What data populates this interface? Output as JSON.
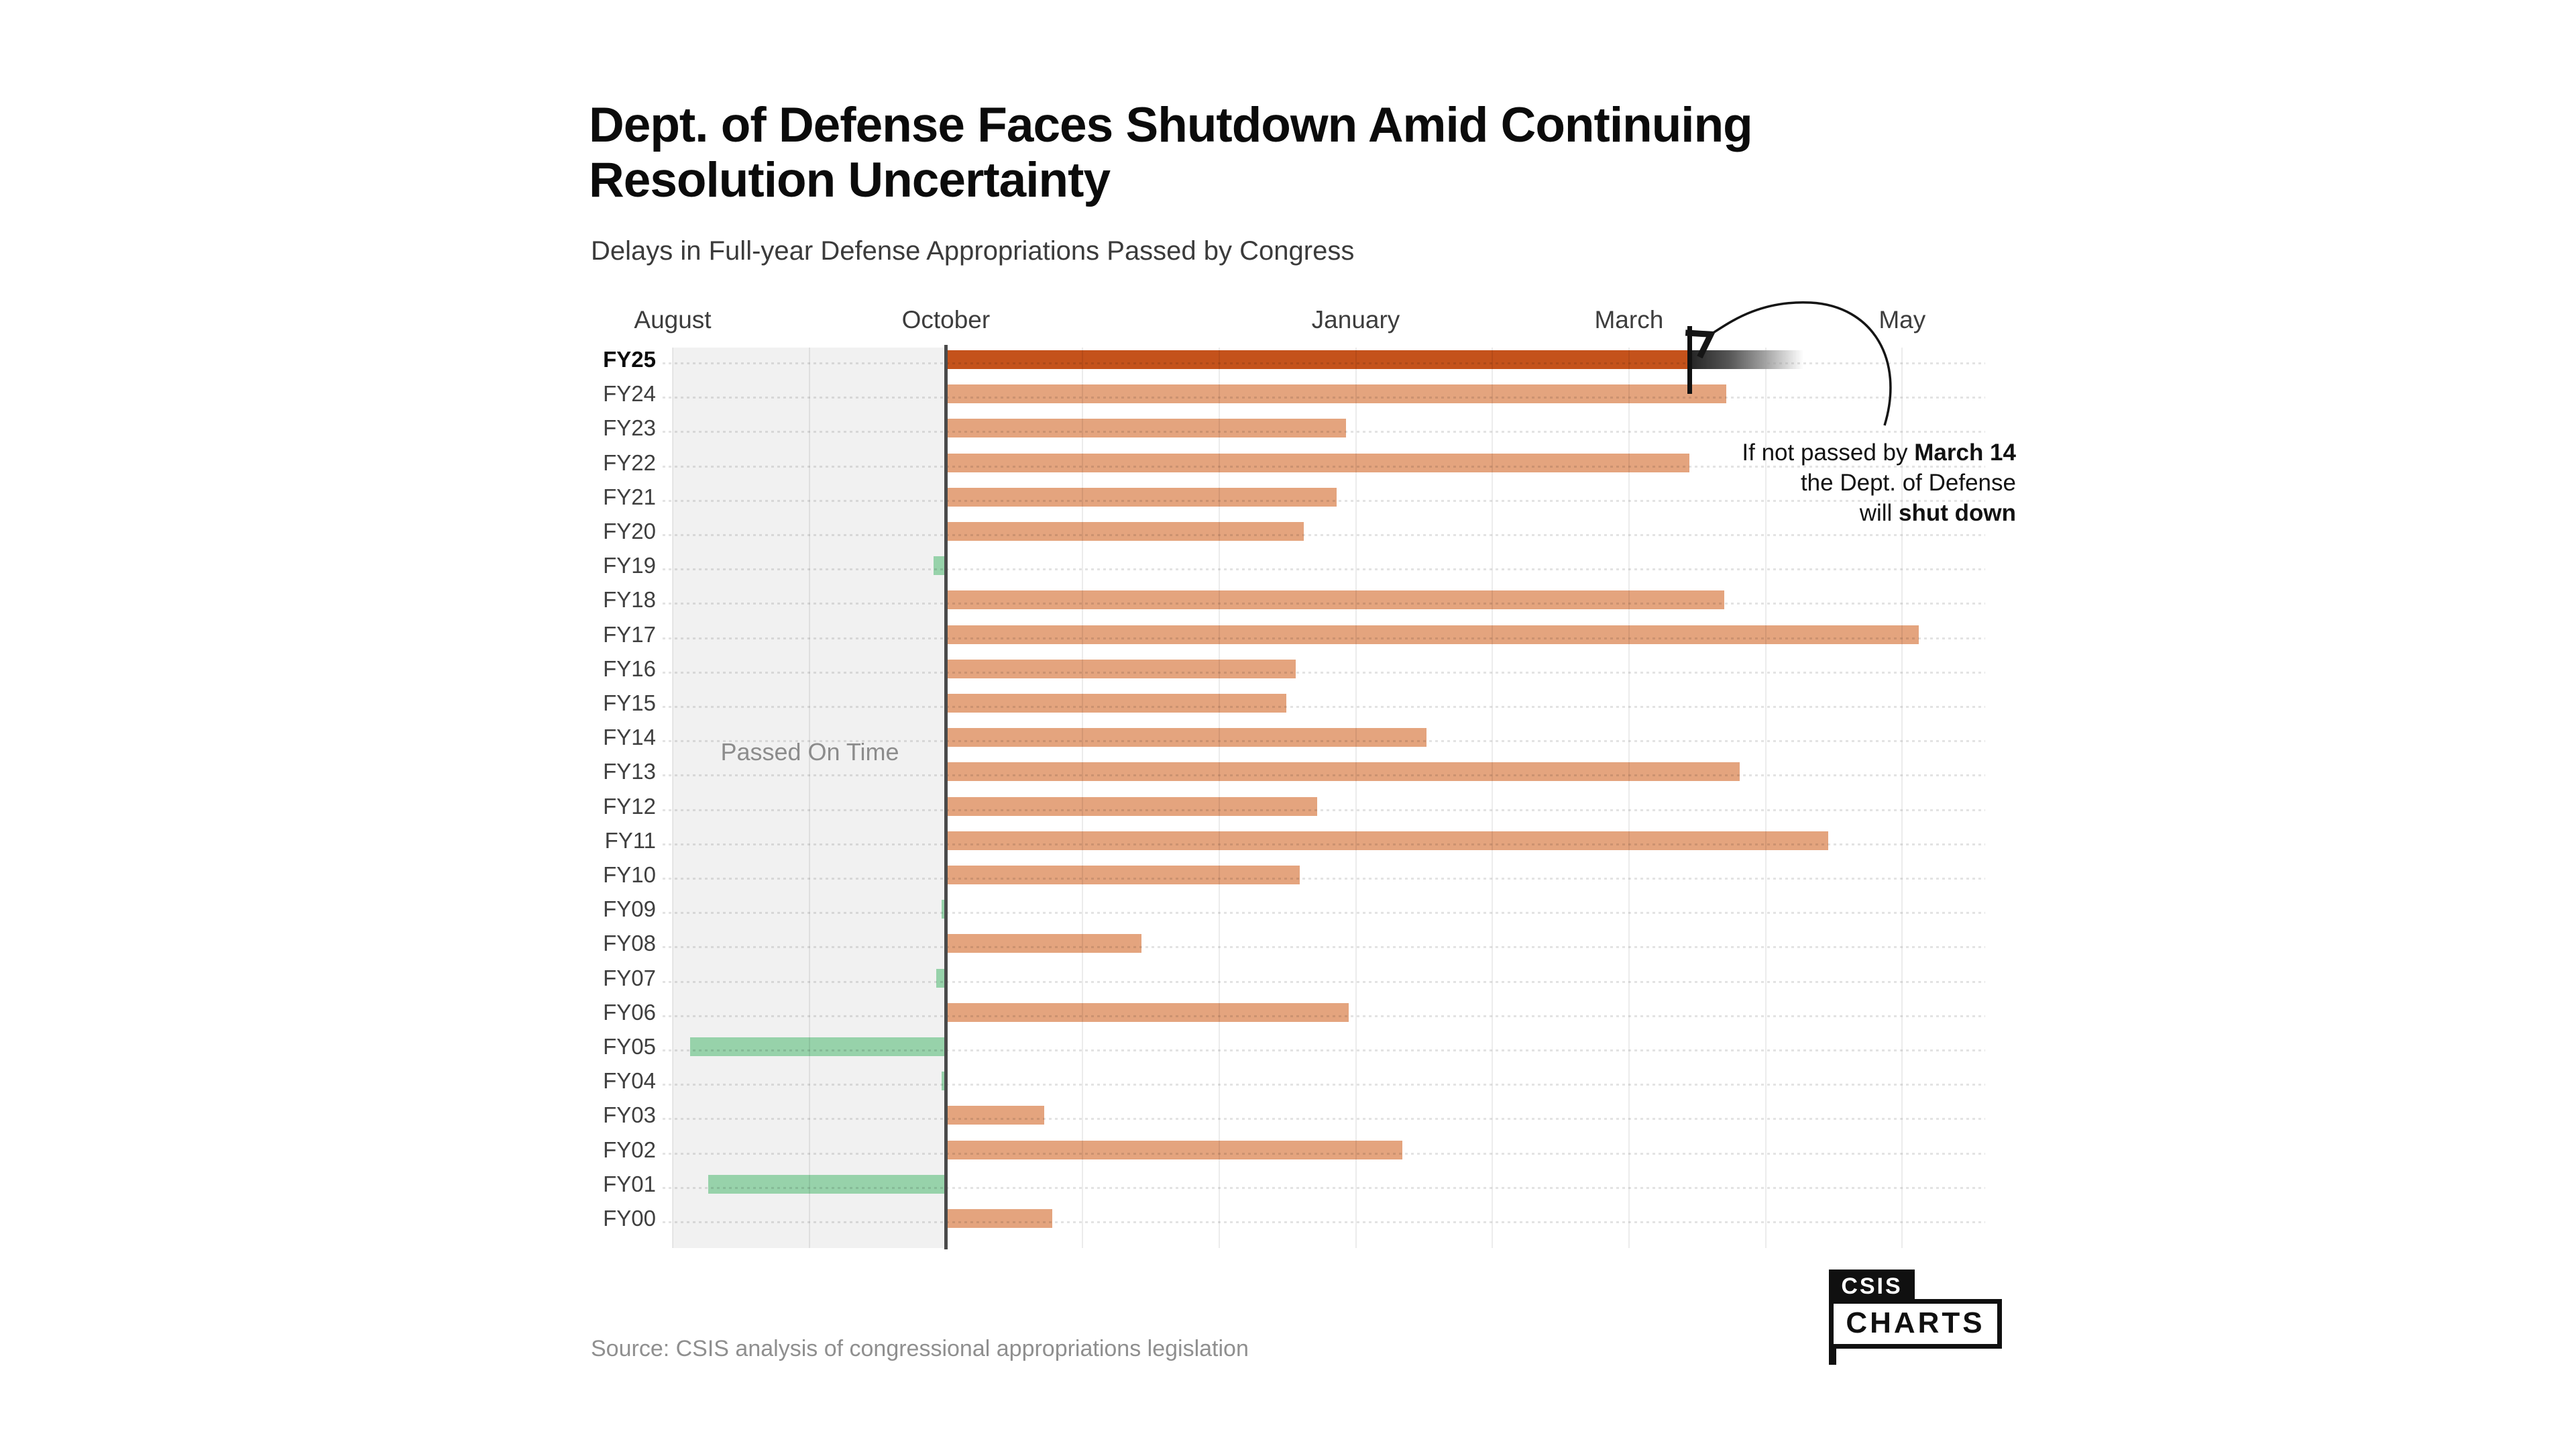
{
  "chart_data": {
    "type": "bar",
    "orientation": "horizontal",
    "title": "Dept. of Defense Faces Shutdown Amid Continuing Resolution Uncertainty",
    "title_line1": "Dept. of Defense Faces Shutdown Amid Continuing",
    "title_line2": "Resolution Uncertainty",
    "subtitle": "Delays in Full-year Defense Appropriations Passed by Congress",
    "x_axis": {
      "unit": "months_from_august_1",
      "domain_months": [
        0,
        9.6
      ],
      "gridline_months": [
        0,
        1,
        2,
        3,
        4,
        5,
        6,
        7,
        8,
        9
      ],
      "tick_labels": [
        {
          "label": "August",
          "month": 0
        },
        {
          "label": "October",
          "month": 2
        },
        {
          "label": "January",
          "month": 5
        },
        {
          "label": "March",
          "month": 7
        },
        {
          "label": "May",
          "month": 9
        }
      ]
    },
    "on_time_region": {
      "label": "Passed On Time",
      "from_month": 0,
      "to_month": 2
    },
    "fiscal_year_start_line_month": 2,
    "rows": [
      {
        "fy": "FY25",
        "kind": "current",
        "from_month": 2,
        "to_month": 7.44,
        "deadline_tick_month": 7.44,
        "fade_to_month": 8.35
      },
      {
        "fy": "FY24",
        "kind": "late",
        "from_month": 2,
        "to_month": 7.71
      },
      {
        "fy": "FY23",
        "kind": "late",
        "from_month": 2,
        "to_month": 4.93
      },
      {
        "fy": "FY22",
        "kind": "late",
        "from_month": 2,
        "to_month": 7.44
      },
      {
        "fy": "FY21",
        "kind": "late",
        "from_month": 2,
        "to_month": 4.86
      },
      {
        "fy": "FY20",
        "kind": "late",
        "from_month": 2,
        "to_month": 4.62
      },
      {
        "fy": "FY19",
        "kind": "early",
        "from_month": 1.91,
        "to_month": 2
      },
      {
        "fy": "FY18",
        "kind": "late",
        "from_month": 2,
        "to_month": 7.7
      },
      {
        "fy": "FY17",
        "kind": "late",
        "from_month": 2,
        "to_month": 9.12
      },
      {
        "fy": "FY16",
        "kind": "late",
        "from_month": 2,
        "to_month": 4.56
      },
      {
        "fy": "FY15",
        "kind": "late",
        "from_month": 2,
        "to_month": 4.49
      },
      {
        "fy": "FY14",
        "kind": "late",
        "from_month": 2,
        "to_month": 5.52
      },
      {
        "fy": "FY13",
        "kind": "late",
        "from_month": 2,
        "to_month": 7.81
      },
      {
        "fy": "FY12",
        "kind": "late",
        "from_month": 2,
        "to_month": 4.72
      },
      {
        "fy": "FY11",
        "kind": "late",
        "from_month": 2,
        "to_month": 8.46
      },
      {
        "fy": "FY10",
        "kind": "late",
        "from_month": 2,
        "to_month": 4.59
      },
      {
        "fy": "FY09",
        "kind": "early",
        "from_month": 1.97,
        "to_month": 2
      },
      {
        "fy": "FY08",
        "kind": "late",
        "from_month": 2,
        "to_month": 3.43
      },
      {
        "fy": "FY07",
        "kind": "early",
        "from_month": 1.93,
        "to_month": 2
      },
      {
        "fy": "FY06",
        "kind": "late",
        "from_month": 2,
        "to_month": 4.95
      },
      {
        "fy": "FY05",
        "kind": "early",
        "from_month": 0.13,
        "to_month": 2
      },
      {
        "fy": "FY04",
        "kind": "early",
        "from_month": 1.97,
        "to_month": 2
      },
      {
        "fy": "FY03",
        "kind": "late",
        "from_month": 2,
        "to_month": 2.72
      },
      {
        "fy": "FY02",
        "kind": "late",
        "from_month": 2,
        "to_month": 5.34
      },
      {
        "fy": "FY01",
        "kind": "early",
        "from_month": 0.26,
        "to_month": 2
      },
      {
        "fy": "FY00",
        "kind": "late",
        "from_month": 2,
        "to_month": 2.78
      }
    ],
    "colors": {
      "current": "#c4521b",
      "late": "#e4a47e",
      "early": "#97d2aa",
      "on_time_band": "#f1f1f1",
      "october_line": "#4a4a4a",
      "deadline_tick": "#111111",
      "grid": "#e5e5e5"
    },
    "legend_position": "none",
    "grid": true
  },
  "annotation": {
    "line1_pre": "If not passed by ",
    "line1_bold": "March 14",
    "line2": "the Dept. of Defense",
    "line3_pre": "will ",
    "line3_bold": "shut down"
  },
  "footer": {
    "source": "Source: CSIS analysis of congressional appropriations legislation",
    "logo_top": "CSIS",
    "logo_bottom": "CHARTS"
  }
}
